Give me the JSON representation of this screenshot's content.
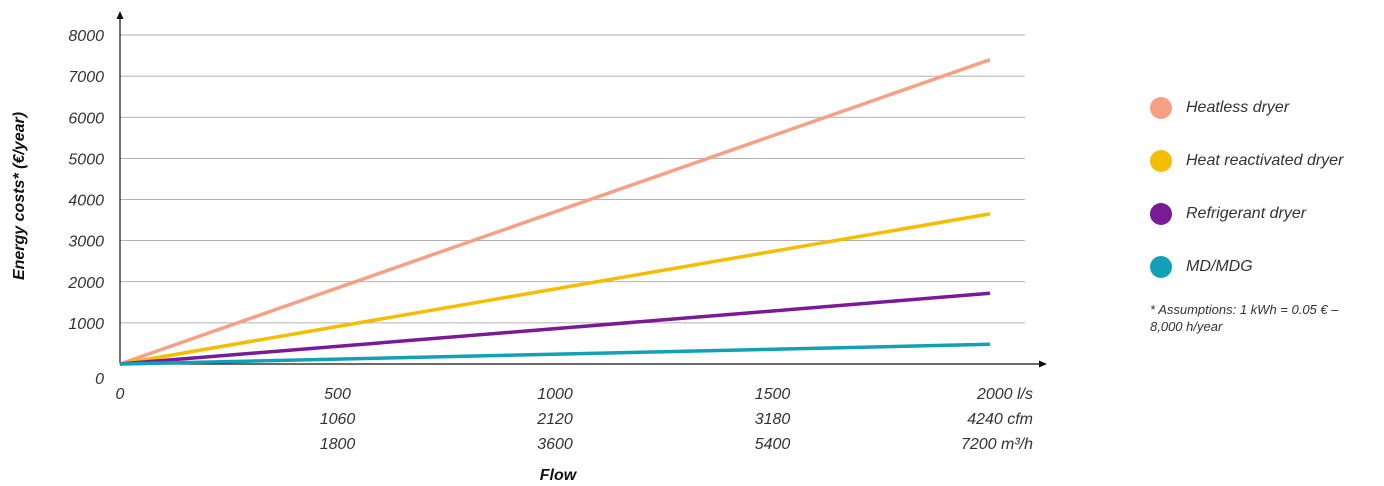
{
  "chart_data": {
    "type": "line",
    "xlabel": "Flow",
    "ylabel": "Energy costs* (€/year)",
    "x": [
      0,
      2000
    ],
    "xlim": [
      0,
      2000
    ],
    "ylim": [
      0,
      8000
    ],
    "y_ticks": [
      "0",
      "1000",
      "2000",
      "3000",
      "4000",
      "5000",
      "6000",
      "7000",
      "8000"
    ],
    "x_ticks": [
      {
        "value": 0,
        "lines": [
          "0"
        ]
      },
      {
        "value": 500,
        "lines": [
          "500",
          "1060",
          "1800"
        ]
      },
      {
        "value": 1000,
        "lines": [
          "1000",
          "2120",
          "3600"
        ]
      },
      {
        "value": 1500,
        "lines": [
          "1500",
          "3180",
          "5400"
        ]
      },
      {
        "value": 2000,
        "lines": [
          "2000 l/s",
          "4240 cfm",
          "7200 m³/h"
        ]
      }
    ],
    "grid": true,
    "legend_position": "right",
    "series": [
      {
        "name": "Heatless dryer",
        "color": "#f7a085",
        "values": [
          0,
          7400
        ]
      },
      {
        "name": "Heat reactivated dryer",
        "color": "#f5bd00",
        "values": [
          0,
          3650
        ]
      },
      {
        "name": "Refrigerant dryer",
        "color": "#7a1a96",
        "values": [
          0,
          1720
        ]
      },
      {
        "name": "MD/MDG",
        "color": "#12a0b6",
        "values": [
          0,
          480
        ]
      }
    ],
    "note": "* Assumptions: 1 kWh = 0.05 € – 8,000 h/year"
  }
}
